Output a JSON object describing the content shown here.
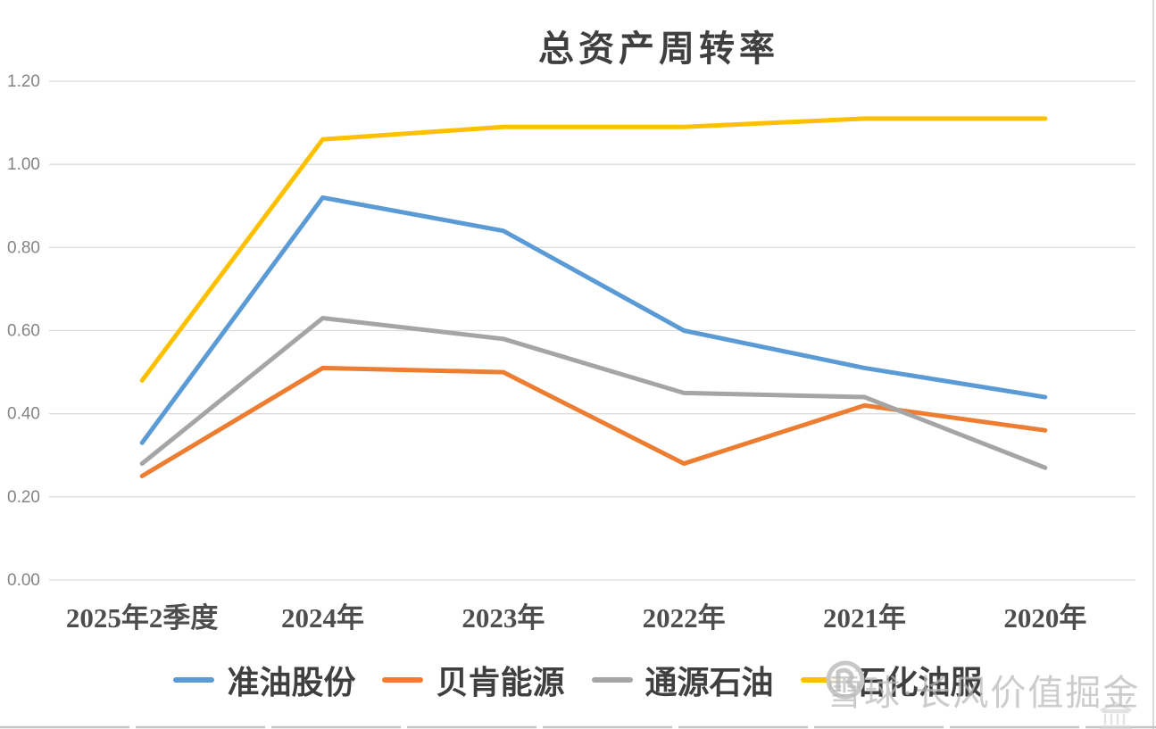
{
  "title": "总资产周转率",
  "chart_data": {
    "type": "line",
    "title": "总资产周转率",
    "categories": [
      "2025年2季度",
      "2024年",
      "2023年",
      "2022年",
      "2021年",
      "2020年"
    ],
    "series": [
      {
        "name": "准油股份",
        "color": "#5B9BD5",
        "values": [
          0.33,
          0.92,
          0.84,
          0.6,
          0.51,
          0.44
        ]
      },
      {
        "name": "贝肯能源",
        "color": "#ED7D31",
        "values": [
          0.25,
          0.51,
          0.5,
          0.28,
          0.42,
          0.36
        ]
      },
      {
        "name": "通源石油",
        "color": "#A5A5A5",
        "values": [
          0.28,
          0.63,
          0.58,
          0.45,
          0.44,
          0.27
        ]
      },
      {
        "name": "石化油服",
        "color": "#FFC000",
        "values": [
          0.48,
          1.06,
          1.09,
          1.09,
          1.11,
          1.11
        ]
      }
    ],
    "ylim": [
      0,
      1.2
    ],
    "ytick_step": 0.2,
    "ytick_labels": [
      "0.00",
      "0.20",
      "0.40",
      "0.60",
      "0.80",
      "1.00",
      "1.20"
    ],
    "grid": "horizontal",
    "legend_position": "bottom"
  },
  "watermark": {
    "logo": "xueqiu-logo",
    "text": "雪球·长风价值掘金"
  },
  "colors": {
    "gridline": "#DCDCDC",
    "axis_tick_label": "#848484",
    "x_label": "#4d4d4d",
    "heading_text": "#3f3f3f",
    "watermark_gray": "#bdbdbd",
    "border_gray": "#d9d9d9"
  }
}
